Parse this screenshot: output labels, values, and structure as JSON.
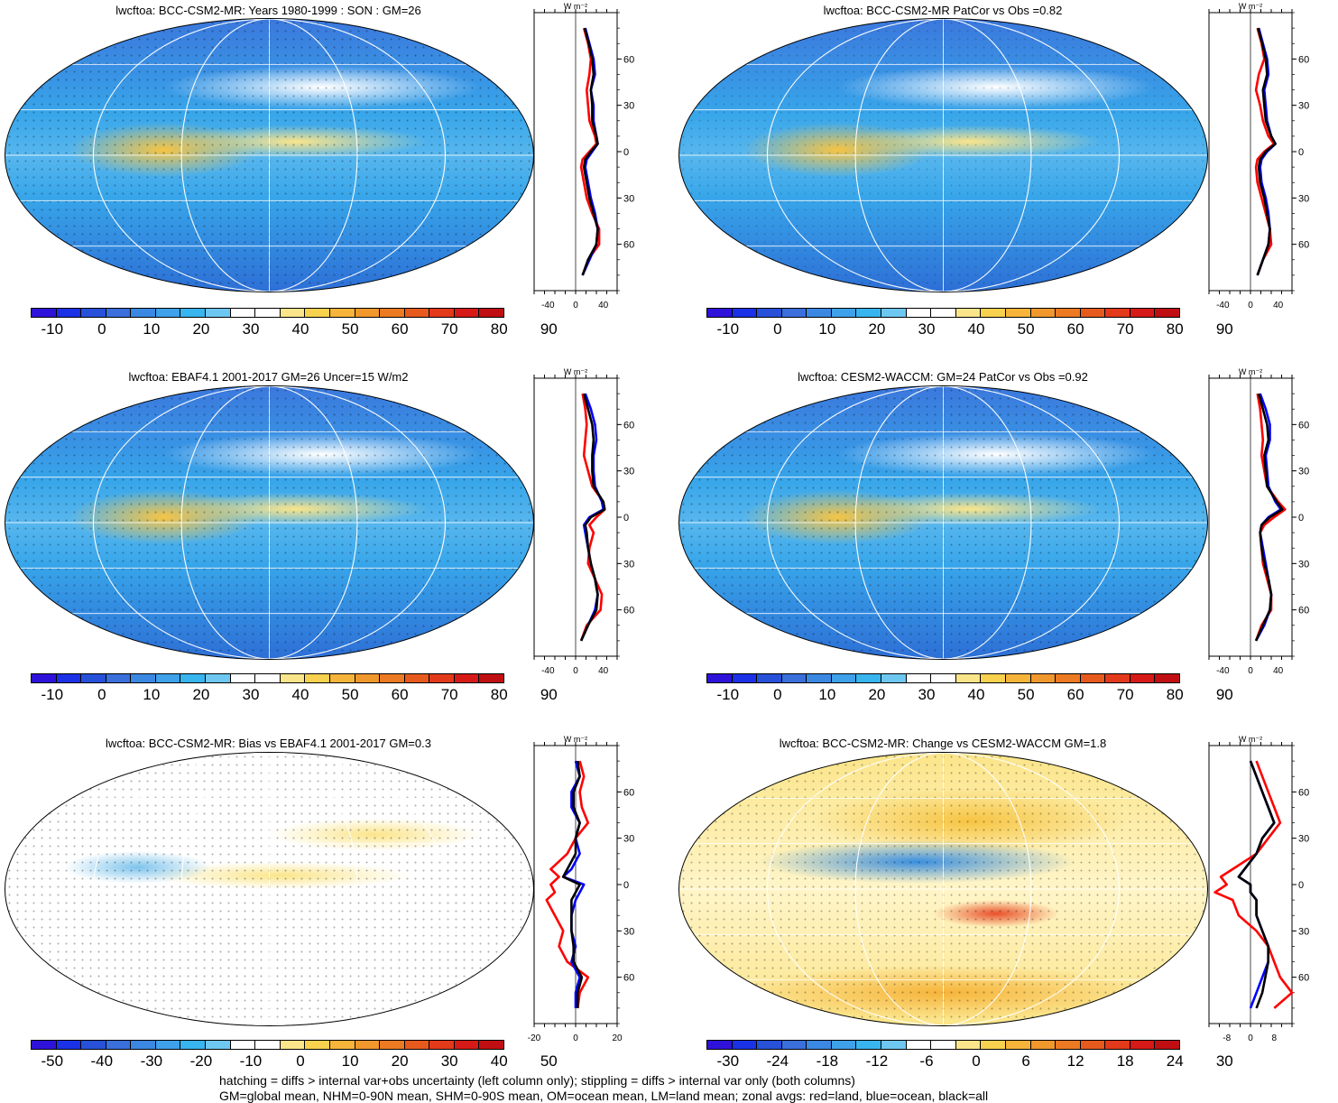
{
  "footer": {
    "line1": "hatching = diffs > internal var+obs uncertainty (left column only); stippling = diffs > internal var only (both columns)",
    "line2": "GM=global mean, NHM=0-90N mean, SHM=0-90S mean, OM=ocean mean, LM=land mean; zonal avgs: red=land, blue=ocean, black=all"
  },
  "colors": {
    "absolute_scale": [
      "#2f12d9",
      "#1a31e6",
      "#2751d9",
      "#3a6fdc",
      "#3b88e3",
      "#3ea1e9",
      "#38b4ee",
      "#6ec7f0",
      "#ffffff",
      "#ffffff",
      "#fbe58a",
      "#f8d24e",
      "#f6b43a",
      "#f0982c",
      "#eb7a22",
      "#e75a1d",
      "#e23a1b",
      "#d61a17",
      "#c00f12"
    ],
    "diff_scale": [
      "#2f12d9",
      "#1a31e6",
      "#2751d9",
      "#3a6fdc",
      "#3b88e3",
      "#3ea1e9",
      "#38b4ee",
      "#6ec7f0",
      "#ffffff",
      "#ffffff",
      "#fbe58a",
      "#f8d24e",
      "#f6b43a",
      "#f0982c",
      "#eb7a22",
      "#e75a1d",
      "#e23a1b",
      "#d61a17",
      "#c00f12"
    ],
    "land": "#ff0000",
    "ocean": "#0000ff",
    "all": "#000000"
  },
  "chart_data": [
    {
      "type": "heatmap",
      "panel": "map-bcc",
      "title": "lwcftoa: BCC-CSM2-MR: Years 1980-1999 : SON : GM=26",
      "colorbar_ticks": [
        "-10",
        "0",
        "10",
        "20",
        "30",
        "40",
        "50",
        "60",
        "70",
        "80",
        "90"
      ]
    },
    {
      "type": "line",
      "panel": "zonal-bcc",
      "unit": "W m⁻²",
      "x_ticks": [
        "-40",
        "0",
        "40"
      ],
      "xlim": [
        -60,
        60
      ],
      "y_ticks": [
        "60N",
        "30N",
        "0",
        "30S",
        "60S"
      ],
      "ylim": [
        -90,
        90
      ],
      "lat": [
        80,
        70,
        60,
        50,
        40,
        30,
        20,
        10,
        5,
        0,
        -5,
        -10,
        -20,
        -30,
        -40,
        -50,
        -60,
        -70,
        -80
      ],
      "series": [
        {
          "key": "land",
          "values": [
            12,
            18,
            22,
            20,
            16,
            18,
            20,
            28,
            30,
            20,
            10,
            8,
            12,
            16,
            24,
            34,
            34,
            18,
            10
          ]
        },
        {
          "key": "ocean",
          "values": [
            14,
            20,
            26,
            28,
            22,
            26,
            26,
            30,
            32,
            24,
            16,
            14,
            18,
            22,
            28,
            32,
            30,
            20,
            10
          ]
        },
        {
          "key": "all",
          "values": [
            13,
            19,
            24,
            26,
            22,
            24,
            24,
            30,
            32,
            22,
            14,
            12,
            16,
            20,
            26,
            32,
            30,
            18,
            10
          ]
        }
      ]
    },
    {
      "type": "heatmap",
      "panel": "map-bcc-patcor",
      "title": "lwcftoa: BCC-CSM2-MR PatCor vs Obs =0.82",
      "colorbar_ticks": [
        "-10",
        "0",
        "10",
        "20",
        "30",
        "40",
        "50",
        "60",
        "70",
        "80",
        "90"
      ]
    },
    {
      "type": "line",
      "panel": "zonal-bcc-patcor",
      "unit": "W m⁻²",
      "x_ticks": [
        "-40",
        "0",
        "40"
      ],
      "xlim": [
        -60,
        60
      ],
      "y_ticks": [
        "60N",
        "30N",
        "0",
        "30S",
        "60S"
      ],
      "ylim": [
        -90,
        90
      ],
      "lat": [
        80,
        70,
        60,
        50,
        40,
        30,
        20,
        10,
        5,
        0,
        -5,
        -10,
        -20,
        -30,
        -40,
        -50,
        -60,
        -70,
        -80
      ],
      "series": [
        {
          "key": "land",
          "values": [
            10,
            16,
            20,
            12,
            8,
            14,
            18,
            26,
            34,
            20,
            10,
            8,
            10,
            16,
            22,
            28,
            30,
            18,
            10
          ]
        },
        {
          "key": "ocean",
          "values": [
            12,
            18,
            24,
            26,
            20,
            22,
            24,
            30,
            36,
            24,
            16,
            14,
            16,
            22,
            26,
            28,
            26,
            18,
            10
          ]
        },
        {
          "key": "all",
          "values": [
            11,
            17,
            22,
            24,
            18,
            20,
            22,
            30,
            36,
            22,
            14,
            12,
            14,
            20,
            24,
            28,
            26,
            18,
            10
          ]
        }
      ]
    },
    {
      "type": "heatmap",
      "panel": "map-ebaf",
      "title": "lwcftoa: EBAF4.1 2001-2017 GM=26 Uncer=15 W/m2",
      "colorbar_ticks": [
        "-10",
        "0",
        "10",
        "20",
        "30",
        "40",
        "50",
        "60",
        "70",
        "80",
        "90"
      ]
    },
    {
      "type": "line",
      "panel": "zonal-ebaf",
      "unit": "W m⁻²",
      "x_ticks": [
        "-40",
        "0",
        "40"
      ],
      "xlim": [
        -60,
        60
      ],
      "y_ticks": [
        "60N",
        "30N",
        "0",
        "30S",
        "60S"
      ],
      "ylim": [
        -90,
        90
      ],
      "lat": [
        80,
        70,
        60,
        50,
        40,
        30,
        20,
        10,
        5,
        0,
        -5,
        -10,
        -20,
        -30,
        -40,
        -50,
        -60,
        -70,
        -80
      ],
      "series": [
        {
          "key": "land",
          "values": [
            10,
            14,
            16,
            14,
            12,
            18,
            24,
            40,
            42,
            30,
            20,
            26,
            20,
            18,
            28,
            38,
            36,
            16,
            8
          ]
        },
        {
          "key": "ocean",
          "values": [
            14,
            22,
            28,
            30,
            26,
            26,
            28,
            38,
            40,
            20,
            12,
            14,
            18,
            22,
            28,
            32,
            28,
            18,
            8
          ]
        },
        {
          "key": "all",
          "values": [
            12,
            18,
            24,
            26,
            24,
            24,
            26,
            40,
            42,
            22,
            14,
            16,
            18,
            22,
            28,
            32,
            30,
            18,
            8
          ]
        }
      ]
    },
    {
      "type": "heatmap",
      "panel": "map-cesm",
      "title": "lwcftoa: CESM2-WACCM: GM=24 PatCor vs Obs =0.92",
      "colorbar_ticks": [
        "-10",
        "0",
        "10",
        "20",
        "30",
        "40",
        "50",
        "60",
        "70",
        "80",
        "90"
      ]
    },
    {
      "type": "line",
      "panel": "zonal-cesm",
      "unit": "W m⁻²",
      "x_ticks": [
        "-40",
        "0",
        "40"
      ],
      "xlim": [
        -60,
        60
      ],
      "y_ticks": [
        "60N",
        "30N",
        "0",
        "30S",
        "60S"
      ],
      "ylim": [
        -90,
        90
      ],
      "lat": [
        80,
        70,
        60,
        50,
        40,
        30,
        20,
        10,
        5,
        0,
        -5,
        -10,
        -20,
        -30,
        -40,
        -50,
        -60,
        -70,
        -80
      ],
      "series": [
        {
          "key": "land",
          "values": [
            10,
            14,
            16,
            18,
            16,
            20,
            24,
            40,
            50,
            34,
            20,
            14,
            16,
            18,
            24,
            30,
            30,
            16,
            8
          ]
        },
        {
          "key": "ocean",
          "values": [
            14,
            22,
            28,
            28,
            22,
            24,
            26,
            36,
            44,
            26,
            16,
            14,
            18,
            22,
            26,
            30,
            28,
            20,
            8
          ]
        },
        {
          "key": "all",
          "values": [
            12,
            18,
            24,
            26,
            20,
            22,
            24,
            38,
            46,
            28,
            16,
            14,
            16,
            20,
            26,
            30,
            28,
            18,
            8
          ]
        }
      ]
    },
    {
      "type": "heatmap",
      "panel": "map-bias",
      "title": "lwcftoa: BCC-CSM2-MR: Bias vs EBAF4.1 2001-2017  GM=0.3",
      "colorbar_ticks": [
        "-50",
        "-40",
        "-30",
        "-20",
        "-10",
        "0",
        "10",
        "20",
        "30",
        "40",
        "50"
      ]
    },
    {
      "type": "line",
      "panel": "zonal-bias",
      "unit": "W m⁻²",
      "x_ticks": [
        "-20",
        "0",
        "20"
      ],
      "xlim": [
        -20,
        20
      ],
      "y_ticks": [
        "60N",
        "30N",
        "0",
        "30S",
        "60S"
      ],
      "ylim": [
        -90,
        90
      ],
      "lat": [
        80,
        70,
        60,
        50,
        40,
        30,
        20,
        10,
        5,
        0,
        -5,
        -10,
        -20,
        -30,
        -40,
        -50,
        -60,
        -70,
        -80
      ],
      "series": [
        {
          "key": "land",
          "values": [
            2,
            4,
            2,
            3,
            6,
            0,
            -4,
            -12,
            -8,
            -12,
            -10,
            -14,
            -10,
            -6,
            -8,
            -4,
            6,
            2,
            1
          ]
        },
        {
          "key": "ocean",
          "values": [
            0,
            2,
            -2,
            -2,
            2,
            0,
            2,
            -2,
            -6,
            4,
            2,
            0,
            -2,
            -2,
            0,
            -2,
            2,
            0,
            0
          ]
        },
        {
          "key": "all",
          "values": [
            1,
            2,
            -1,
            -1,
            2,
            0,
            0,
            -4,
            -6,
            2,
            0,
            -2,
            -2,
            -2,
            -1,
            -1,
            3,
            1,
            1
          ]
        }
      ]
    },
    {
      "type": "heatmap",
      "panel": "map-change",
      "title": "lwcftoa: BCC-CSM2-MR: Change vs CESM2-WACCM GM=1.8",
      "colorbar_ticks": [
        "-30",
        "-24",
        "-18",
        "-12",
        "-6",
        "0",
        "6",
        "12",
        "18",
        "24",
        "30"
      ]
    },
    {
      "type": "line",
      "panel": "zonal-change",
      "unit": "W m⁻²",
      "x_ticks": [
        "-8",
        "0",
        "8"
      ],
      "xlim": [
        -14,
        14
      ],
      "y_ticks": [
        "60N",
        "30N",
        "0",
        "30S",
        "60S"
      ],
      "ylim": [
        -90,
        90
      ],
      "lat": [
        80,
        70,
        60,
        50,
        40,
        30,
        20,
        10,
        5,
        0,
        -5,
        -10,
        -20,
        -30,
        -40,
        -50,
        -60,
        -70,
        -80
      ],
      "series": [
        {
          "key": "land",
          "values": [
            2,
            4,
            6,
            8,
            10,
            6,
            2,
            -6,
            -10,
            -8,
            -12,
            -6,
            -4,
            2,
            6,
            8,
            10,
            14,
            8
          ]
        },
        {
          "key": "ocean",
          "values": [
            0,
            2,
            4,
            6,
            8,
            4,
            2,
            -2,
            -4,
            0,
            0,
            2,
            2,
            4,
            6,
            6,
            4,
            2,
            0
          ]
        },
        {
          "key": "all",
          "values": [
            0,
            2,
            4,
            6,
            8,
            4,
            2,
            -2,
            -4,
            0,
            0,
            2,
            2,
            4,
            6,
            6,
            5,
            4,
            2
          ]
        }
      ]
    }
  ]
}
